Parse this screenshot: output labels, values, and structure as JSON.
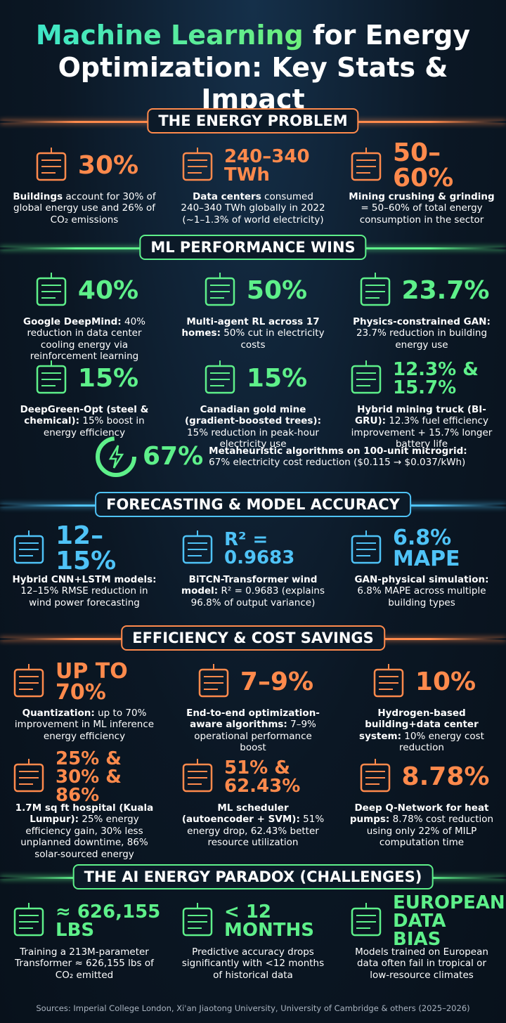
{
  "header": {
    "title_highlight": "Machine Learning",
    "title_rest": "for Energy Optimization: Key Stats & Impact"
  },
  "sections": [
    {
      "heading": "THE ENERGY PROBLEM",
      "color": "#ff8a4c",
      "items": [
        {
          "stat": "30%",
          "bold": "Buildings",
          "text": "account for 30% of global energy use and 26% of CO₂ emissions"
        },
        {
          "stat": "240–340 TWh",
          "bold": "Data centers",
          "text": "consumed 240–340 TWh globally in 2022 (~1–1.3% of world electricity)"
        },
        {
          "stat": "50–60%",
          "bold": "Mining crushing & grinding",
          "text": "= 50–60% of total energy consumption in the sector"
        }
      ]
    },
    {
      "heading": "ML PERFORMANCE WINS",
      "color": "#5ef08a",
      "items": [
        {
          "stat": "40%",
          "bold": "Google DeepMind:",
          "text": "40% reduction in data center cooling energy via reinforcement learning"
        },
        {
          "stat": "50%",
          "bold": "Multi-agent RL across 17 homes:",
          "text": "50% cut in electricity costs"
        },
        {
          "stat": "23.7%",
          "bold": "Physics-constrained GAN:",
          "text": "23.7% reduction in building energy use"
        },
        {
          "stat": "15%",
          "bold": "DeepGreen-Opt (steel & chemical):",
          "text": "15% boost in energy efficiency"
        },
        {
          "stat": "15%",
          "bold": "Canadian gold mine (gradient-boosted trees):",
          "text": "15% reduction in peak-hour electricity use"
        },
        {
          "stat": "12.3% & 15.7%",
          "bold": "Hybrid mining truck (BI-GRU):",
          "text": "12.3% fuel efficiency improvement + 15.7% longer battery life"
        }
      ],
      "featured": {
        "stat": "67%",
        "bold": "Metaheuristic algorithms on 100-unit microgrid:",
        "text": "67% electricity cost reduction ($0.115 → $0.037/kWh)"
      }
    },
    {
      "heading": "FORECASTING & MODEL ACCURACY",
      "color": "#4fc3f7",
      "items": [
        {
          "stat": "12–15%",
          "bold": "Hybrid CNN+LSTM models:",
          "text": "12–15% RMSE reduction in wind power forecasting"
        },
        {
          "stat": "R² = 0.9683",
          "bold": "BiTCN-Transformer wind model:",
          "text": "R² = 0.9683 (explains 96.8% of output variance)"
        },
        {
          "stat": "6.8% MAPE",
          "bold": "GAN-physical simulation:",
          "text": "6.8% MAPE across multiple building types"
        }
      ]
    },
    {
      "heading": "EFFICIENCY & COST SAVINGS",
      "color": "#ff8a4c",
      "items": [
        {
          "stat": "UP TO 70%",
          "bold": "Quantization:",
          "text": "up to 70% improvement in ML inference energy efficiency"
        },
        {
          "stat": "7–9%",
          "bold": "End-to-end optimization-aware algorithms:",
          "text": "7–9% operational performance boost"
        },
        {
          "stat": "10%",
          "bold": "Hydrogen-based building+data center system:",
          "text": "10% energy cost reduction"
        },
        {
          "stat": "25% & 30% & 86%",
          "bold": "1.7M sq ft hospital (Kuala Lumpur):",
          "text": "25% energy efficiency gain, 30% less unplanned downtime, 86% solar-sourced energy"
        },
        {
          "stat": "51% & 62.43%",
          "bold": "ML scheduler (autoencoder + SVM):",
          "text": "51% energy drop, 62.43% better resource utilization"
        },
        {
          "stat": "8.78%",
          "bold": "Deep Q-Network for heat pumps:",
          "text": "8.78% cost reduction using only 22% of MILP computation time"
        }
      ]
    },
    {
      "heading": "THE AI ENERGY PARADOX (CHALLENGES)",
      "color": "#5ef08a",
      "items": [
        {
          "stat": "≈ 626,155 LBS",
          "bold": "",
          "text": "Training a 213M-parameter Transformer ≈ 626,155 lbs of CO₂ emitted"
        },
        {
          "stat": "< 12 MONTHS",
          "bold": "",
          "text": "Predictive accuracy drops significantly with <12 months of historical data"
        },
        {
          "stat": "EUROPEAN DATA BIAS",
          "bold": "",
          "text": "Models trained on European data often fail in tropical or low-resource climates"
        }
      ]
    }
  ],
  "footer": {
    "sources": "Sources: Imperial College London, Xi'an Jiaotong University, University of Cambridge & others (2025–2026)"
  }
}
